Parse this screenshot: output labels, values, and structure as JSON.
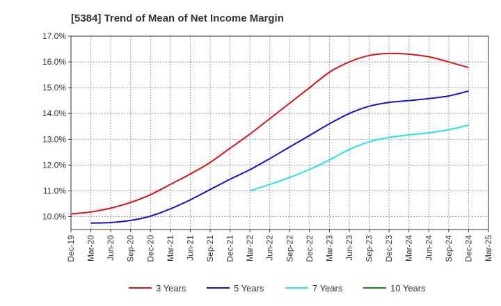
{
  "chart_data": {
    "type": "line",
    "title": "[5384]  Trend of Mean of Net Income Margin",
    "xlabel": "",
    "ylabel": "",
    "ylim": [
      9.5,
      17.0
    ],
    "y_ticks": [
      "10.0%",
      "11.0%",
      "12.0%",
      "13.0%",
      "14.0%",
      "15.0%",
      "16.0%",
      "17.0%"
    ],
    "y_tick_values": [
      10.0,
      11.0,
      12.0,
      13.0,
      14.0,
      15.0,
      16.0,
      17.0
    ],
    "x_ticks": [
      "Dec-19",
      "Mar-20",
      "Jun-20",
      "Sep-20",
      "Dec-20",
      "Mar-21",
      "Jun-21",
      "Sep-21",
      "Dec-21",
      "Mar-22",
      "Jun-22",
      "Sep-22",
      "Dec-22",
      "Mar-23",
      "Jun-23",
      "Sep-23",
      "Dec-23",
      "Mar-24",
      "Jun-24",
      "Sep-24",
      "Dec-24",
      "Mar-25"
    ],
    "grid": true,
    "legend_position": "bottom",
    "series": [
      {
        "name": "3 Years",
        "color": "#dd1111",
        "points": [
          [
            "Dec-19",
            10.1
          ],
          [
            "Mar-20",
            10.18
          ],
          [
            "Jun-20",
            10.33
          ],
          [
            "Sep-20",
            10.55
          ],
          [
            "Dec-20",
            10.85
          ],
          [
            "Mar-21",
            11.25
          ],
          [
            "Jun-21",
            11.65
          ],
          [
            "Sep-21",
            12.1
          ],
          [
            "Dec-21",
            12.65
          ],
          [
            "Mar-22",
            13.2
          ],
          [
            "Jun-22",
            13.8
          ],
          [
            "Sep-22",
            14.4
          ],
          [
            "Dec-22",
            15.0
          ],
          [
            "Mar-23",
            15.6
          ],
          [
            "Jun-23",
            16.0
          ],
          [
            "Sep-23",
            16.25
          ],
          [
            "Dec-23",
            16.33
          ],
          [
            "Mar-24",
            16.3
          ],
          [
            "Jun-24",
            16.2
          ],
          [
            "Sep-24",
            16.0
          ],
          [
            "Dec-24",
            15.78
          ]
        ]
      },
      {
        "name": "5 Years",
        "color": "#1111cc",
        "points": [
          [
            "Mar-20",
            9.75
          ],
          [
            "Jun-20",
            9.77
          ],
          [
            "Sep-20",
            9.85
          ],
          [
            "Dec-20",
            10.02
          ],
          [
            "Mar-21",
            10.3
          ],
          [
            "Jun-21",
            10.65
          ],
          [
            "Sep-21",
            11.05
          ],
          [
            "Dec-21",
            11.45
          ],
          [
            "Mar-22",
            11.82
          ],
          [
            "Jun-22",
            12.25
          ],
          [
            "Sep-22",
            12.7
          ],
          [
            "Dec-22",
            13.15
          ],
          [
            "Mar-23",
            13.6
          ],
          [
            "Jun-23",
            14.0
          ],
          [
            "Sep-23",
            14.28
          ],
          [
            "Dec-23",
            14.43
          ],
          [
            "Mar-24",
            14.5
          ],
          [
            "Jun-24",
            14.58
          ],
          [
            "Sep-24",
            14.68
          ],
          [
            "Dec-24",
            14.87
          ]
        ]
      },
      {
        "name": "7 Years",
        "color": "#22e5e5",
        "points": [
          [
            "Mar-22",
            11.0
          ],
          [
            "Jun-22",
            11.25
          ],
          [
            "Sep-22",
            11.52
          ],
          [
            "Dec-22",
            11.83
          ],
          [
            "Mar-23",
            12.2
          ],
          [
            "Jun-23",
            12.6
          ],
          [
            "Sep-23",
            12.9
          ],
          [
            "Dec-23",
            13.07
          ],
          [
            "Mar-24",
            13.17
          ],
          [
            "Jun-24",
            13.25
          ],
          [
            "Sep-24",
            13.37
          ],
          [
            "Dec-24",
            13.55
          ]
        ]
      },
      {
        "name": "10 Years",
        "color": "#118811",
        "points": []
      }
    ]
  }
}
